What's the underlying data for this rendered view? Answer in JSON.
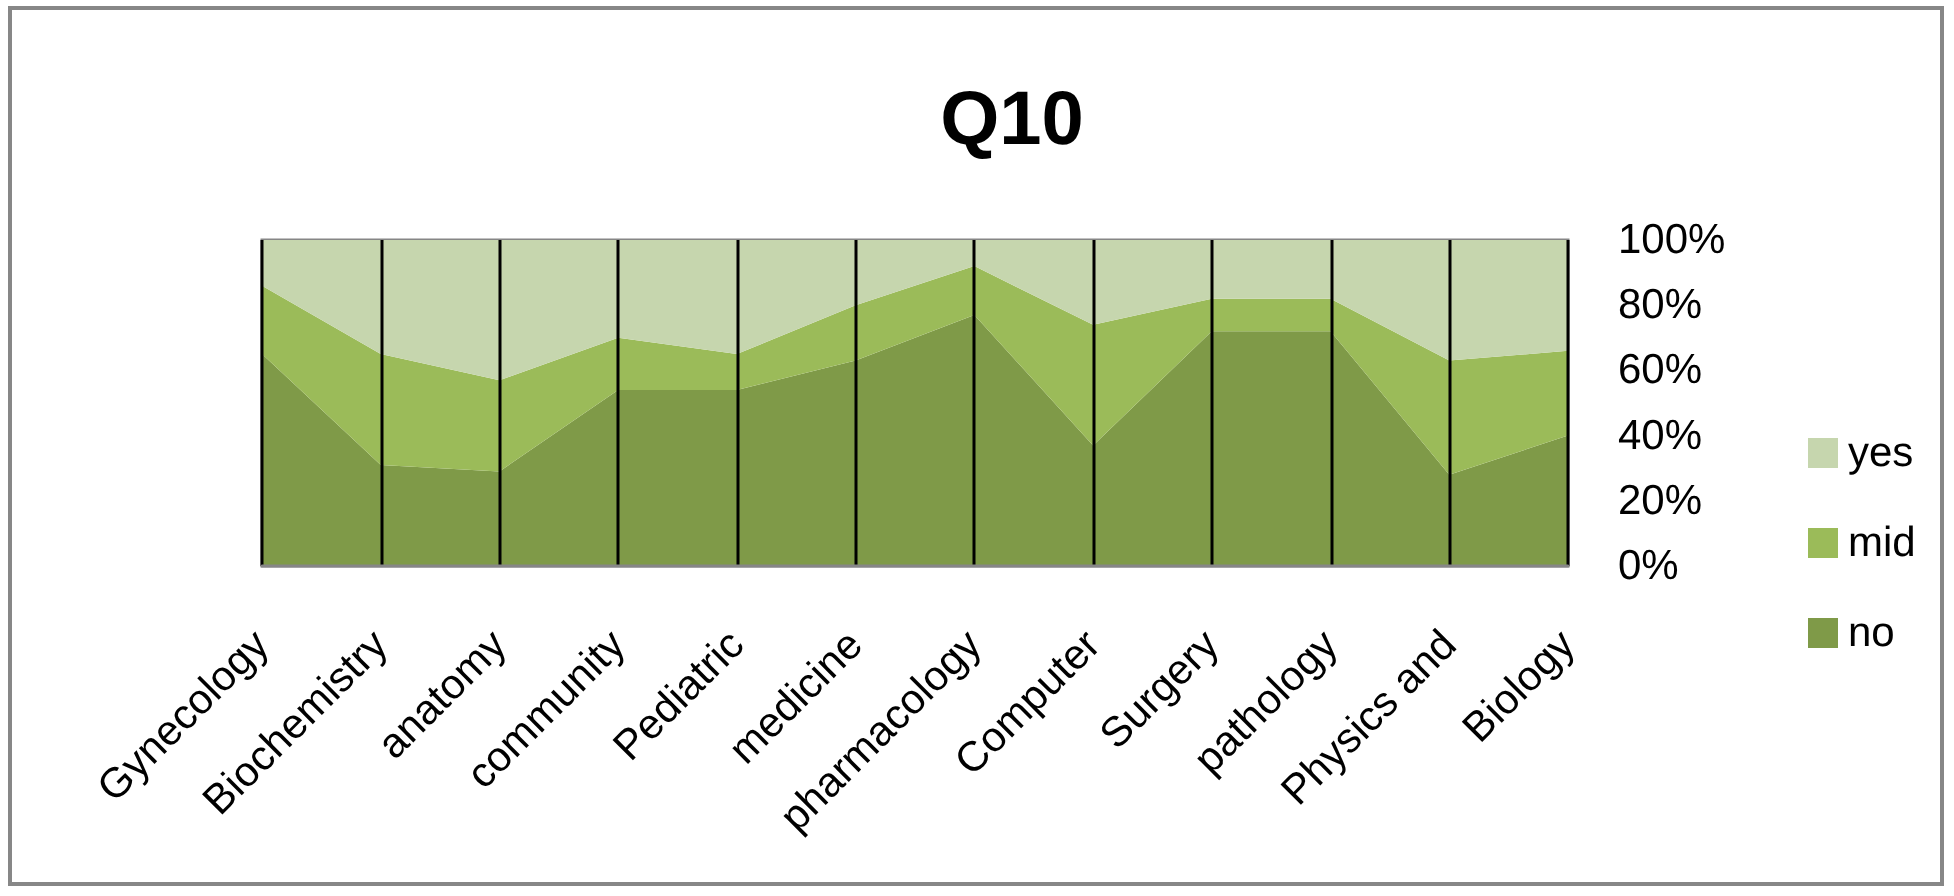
{
  "chart_data": {
    "type": "area",
    "title": "Q10",
    "categories": [
      "Gynecology",
      "Biochemistry",
      "anatomy",
      "community",
      "Pediatric",
      "medicine",
      "pharmacology",
      "Computer",
      "Surgery",
      "pathology",
      "Physics and",
      "Biology"
    ],
    "series": [
      {
        "name": "no",
        "color": "#7f9a48",
        "values": [
          65,
          31,
          29,
          54,
          54,
          63,
          77,
          37,
          72,
          72,
          28,
          40
        ]
      },
      {
        "name": "mid",
        "color": "#9bbb59",
        "values": [
          21,
          34,
          28,
          16,
          11,
          17,
          15,
          37,
          10,
          10,
          35,
          26
        ]
      },
      {
        "name": "yes",
        "color": "#c6d6ae",
        "values": [
          14,
          35,
          43,
          30,
          35,
          20,
          8,
          26,
          18,
          18,
          37,
          34
        ]
      }
    ],
    "stacked": true,
    "ylim": [
      0,
      100
    ],
    "yticks": [
      {
        "value": 0,
        "label": "0%"
      },
      {
        "value": 20,
        "label": "20%"
      },
      {
        "value": 40,
        "label": "40%"
      },
      {
        "value": 60,
        "label": "60%"
      },
      {
        "value": 80,
        "label": "80%"
      },
      {
        "value": 100,
        "label": "100%"
      }
    ],
    "grid": "x",
    "legend": "right"
  }
}
